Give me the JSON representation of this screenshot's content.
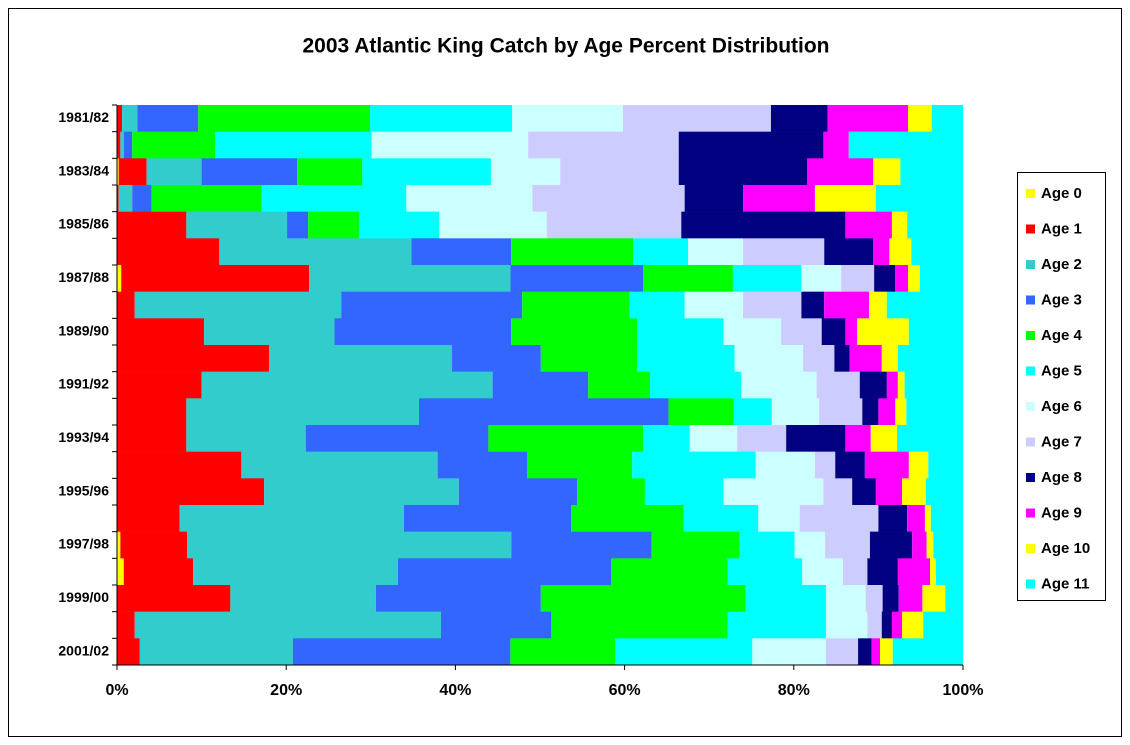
{
  "chart_data": {
    "type": "stacked-barh-percent",
    "title": "2003  Atlantic King  Catch by Age Percent Distribution",
    "categories": [
      "1981/82",
      null,
      "1983/84",
      null,
      "1985/86",
      null,
      "1987/88",
      null,
      "1989/90",
      null,
      "1991/92",
      null,
      "1993/94",
      null,
      "1995/96",
      null,
      "1997/98",
      null,
      "1999/00",
      null,
      "2001/02"
    ],
    "xlim": [
      0,
      100
    ],
    "xticks": [
      {
        "value": 0,
        "label": "0%"
      },
      {
        "value": 20,
        "label": "20%"
      },
      {
        "value": 40,
        "label": "40%"
      },
      {
        "value": 60,
        "label": "60%"
      },
      {
        "value": 80,
        "label": "80%"
      },
      {
        "value": 100,
        "label": "100%"
      }
    ],
    "legend": "right",
    "series": [
      {
        "name": "Age 0",
        "color": "#ffff00",
        "values": [
          0,
          0,
          0.2,
          0,
          0,
          0,
          0.5,
          0,
          0,
          0,
          0,
          0,
          0,
          0,
          0,
          0,
          0.4,
          0.8,
          0,
          0,
          0
        ]
      },
      {
        "name": "Age 1",
        "color": "#ff0000",
        "values": [
          0.6,
          0.4,
          3.3,
          0.2,
          8.2,
          12.1,
          22.2,
          2.1,
          10.3,
          18.0,
          10.0,
          8.2,
          8.2,
          14.7,
          17.4,
          7.4,
          7.9,
          8.2,
          13.4,
          2.1,
          2.7
        ]
      },
      {
        "name": "Age 2",
        "color": "#33cccc",
        "values": [
          1.8,
          0.4,
          6.5,
          1.6,
          11.9,
          22.7,
          23.8,
          24.4,
          15.4,
          21.6,
          34.4,
          27.5,
          14.1,
          23.2,
          23.0,
          26.5,
          38.3,
          24.2,
          17.2,
          36.2,
          18.1
        ]
      },
      {
        "name": "Age 3",
        "color": "#3366ff",
        "values": [
          7.2,
          1.0,
          11.3,
          2.3,
          2.5,
          11.8,
          15.7,
          21.4,
          20.9,
          10.5,
          11.3,
          29.5,
          21.6,
          10.6,
          14.0,
          19.8,
          16.6,
          25.2,
          19.5,
          13.0,
          25.7
        ]
      },
      {
        "name": "Age 4",
        "color": "#00ff00",
        "values": [
          20.3,
          9.8,
          7.7,
          13.0,
          6.0,
          14.4,
          10.6,
          12.7,
          14.9,
          11.4,
          7.3,
          7.7,
          18.3,
          12.4,
          8.0,
          13.3,
          10.4,
          13.8,
          24.2,
          20.9,
          12.4
        ]
      },
      {
        "name": "Age 5",
        "color": "#00ffff",
        "values": [
          16.8,
          18.5,
          15.2,
          17.1,
          9.5,
          6.5,
          8.1,
          6.5,
          10.2,
          11.5,
          10.8,
          4.5,
          5.5,
          14.6,
          9.3,
          8.8,
          6.5,
          8.8,
          9.5,
          11.6,
          16.2
        ]
      },
      {
        "name": "Age 6",
        "color": "#ccffff",
        "values": [
          13.1,
          18.5,
          8.2,
          14.9,
          12.7,
          6.5,
          4.7,
          6.9,
          6.8,
          8.1,
          8.9,
          5.6,
          5.6,
          7.0,
          11.8,
          4.9,
          3.6,
          4.8,
          4.7,
          4.9,
          8.7
        ]
      },
      {
        "name": "Age 7",
        "color": "#ccccff",
        "values": [
          17.5,
          17.8,
          14.0,
          18.0,
          15.9,
          9.6,
          3.9,
          6.9,
          4.8,
          3.7,
          5.1,
          5.1,
          5.8,
          2.4,
          3.4,
          9.3,
          5.3,
          2.9,
          2.0,
          1.7,
          3.8
        ]
      },
      {
        "name": "Age 8",
        "color": "#000080",
        "values": [
          6.7,
          17.1,
          15.2,
          6.9,
          19.4,
          5.8,
          2.5,
          2.7,
          2.8,
          1.8,
          3.2,
          1.9,
          7.0,
          3.5,
          2.8,
          3.4,
          5.0,
          3.6,
          1.9,
          1.2,
          1.6
        ]
      },
      {
        "name": "Age 9",
        "color": "#ff00ff",
        "values": [
          9.5,
          3.0,
          7.8,
          8.5,
          5.5,
          1.9,
          1.5,
          5.3,
          1.4,
          3.8,
          1.3,
          2.0,
          3.0,
          5.2,
          3.1,
          2.1,
          1.7,
          3.8,
          2.8,
          1.2,
          1.0
        ]
      },
      {
        "name": "Age 10",
        "color": "#ffff00",
        "values": [
          2.8,
          0,
          3.2,
          7.2,
          1.8,
          2.6,
          1.4,
          2.1,
          6.1,
          1.9,
          0.8,
          1.3,
          3.1,
          2.3,
          2.8,
          0.7,
          0.8,
          0.7,
          2.7,
          2.5,
          1.5
        ]
      },
      {
        "name": "Age 11",
        "color": "#00ffff",
        "values": [
          3.7,
          13.5,
          7.4,
          10.3,
          6.6,
          6.1,
          5.1,
          9.0,
          6.4,
          7.7,
          6.9,
          6.7,
          7.8,
          4.1,
          4.4,
          3.8,
          3.5,
          3.2,
          2.1,
          4.7,
          8.3
        ]
      }
    ]
  }
}
